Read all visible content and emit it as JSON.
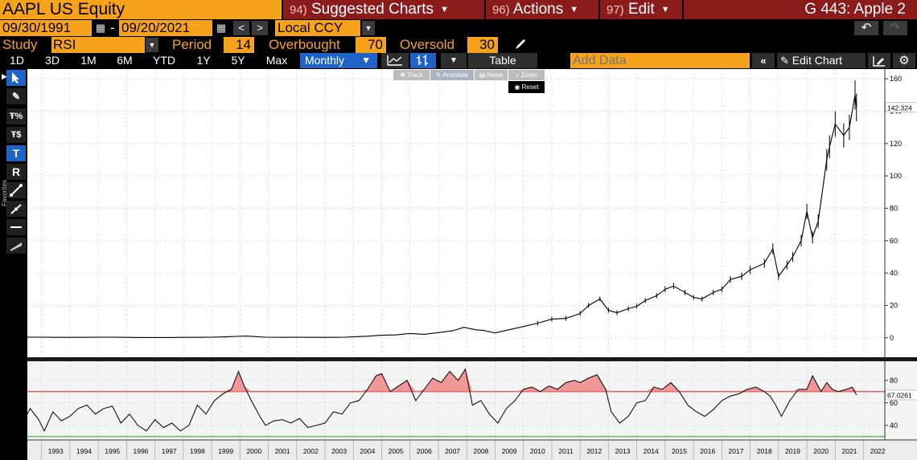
{
  "header": {
    "ticker": "AAPL US Equity",
    "menus": [
      {
        "num": "94)",
        "label": "Suggested Charts"
      },
      {
        "num": "96)",
        "label": "Actions"
      },
      {
        "num": "97)",
        "label": "Edit"
      }
    ],
    "page_id": "G 443: Apple 2"
  },
  "date_range": {
    "start": "09/30/1991",
    "separator": "-",
    "end": "09/20/2021",
    "prev_glyph": "<",
    "next_glyph": ">",
    "currency": "Local CCY"
  },
  "study": {
    "label": "Study",
    "value": "RSI",
    "period_label": "Period",
    "period": "14",
    "overbought_label": "Overbought",
    "overbought": "70",
    "oversold_label": "Oversold",
    "oversold": "30"
  },
  "toolbar": {
    "ranges": [
      "1D",
      "3D",
      "1M",
      "6M",
      "YTD",
      "1Y",
      "5Y",
      "Max"
    ],
    "frequency": "Monthly",
    "table_label": "Table",
    "add_data_placeholder": "Add Data",
    "edit_chart_label": "Edit Chart"
  },
  "left_tools": {
    "favorites_label": "Favorites",
    "items": [
      "cursor",
      "pencil",
      "percent",
      "dollar",
      "text",
      "R",
      "line",
      "trend",
      "hline",
      "fill"
    ]
  },
  "chart_popup": {
    "track": "Track",
    "annotate": "Annotate",
    "news": "News",
    "zoom": "Zoom",
    "reset": "Reset"
  },
  "chart_data": [
    {
      "type": "line",
      "panel": "price",
      "x": [
        1991.75,
        1992.0,
        1992.5,
        1993.0,
        1993.5,
        1994.0,
        1994.5,
        1995.0,
        1995.5,
        1996.0,
        1996.5,
        1997.0,
        1997.5,
        1998.0,
        1998.5,
        1999.0,
        1999.5,
        1999.9,
        2000.2,
        2000.5,
        2000.9,
        2001.5,
        2002.0,
        2002.5,
        2003.0,
        2003.3,
        2003.7,
        2004.0,
        2004.5,
        2005.0,
        2005.5,
        2006.0,
        2006.5,
        2007.0,
        2007.5,
        2007.9,
        2008.3,
        2008.6,
        2009.0,
        2009.5,
        2010.0,
        2010.5,
        2011.0,
        2011.5,
        2012.0,
        2012.3,
        2012.7,
        2013.0,
        2013.3,
        2013.7,
        2014.0,
        2014.3,
        2014.7,
        2015.0,
        2015.3,
        2015.7,
        2016.0,
        2016.3,
        2016.7,
        2017.0,
        2017.3,
        2017.7,
        2018.0,
        2018.5,
        2018.8,
        2019.0,
        2019.3,
        2019.5,
        2019.8,
        2020.0,
        2020.2,
        2020.4,
        2020.7,
        2020.8,
        2021.0,
        2021.3,
        2021.5,
        2021.7,
        2021.75
      ],
      "y": [
        0.4,
        0.5,
        0.4,
        0.4,
        0.3,
        0.3,
        0.3,
        0.4,
        0.4,
        0.3,
        0.2,
        0.2,
        0.2,
        0.3,
        0.3,
        0.4,
        0.6,
        0.9,
        1.1,
        0.8,
        0.4,
        0.3,
        0.4,
        0.3,
        0.3,
        0.3,
        0.4,
        0.6,
        1.0,
        1.6,
        1.8,
        2.7,
        2.2,
        3.2,
        4.3,
        6.5,
        5.0,
        4.5,
        3.0,
        5.0,
        7.0,
        9.0,
        11.5,
        12.0,
        15.0,
        20.0,
        24.0,
        17.0,
        15.5,
        18.0,
        19.5,
        23.0,
        26.0,
        30.0,
        32.0,
        28.0,
        25.0,
        24.0,
        28.0,
        30.0,
        36.0,
        38.0,
        42.0,
        46.0,
        55.0,
        38.0,
        45.0,
        50.0,
        60.0,
        78.0,
        62.0,
        72.0,
        110.0,
        118.0,
        132.0,
        125.0,
        130.0,
        150.0,
        142.324
      ],
      "ylim": [
        -12,
        166
      ],
      "yticks": [
        0,
        20,
        40,
        60,
        80,
        100,
        120,
        140,
        160
      ],
      "last_value_label": "142.324"
    },
    {
      "type": "line",
      "panel": "rsi",
      "x": [
        1991.75,
        1992.0,
        1992.3,
        1992.6,
        1992.9,
        1993.1,
        1993.4,
        1993.7,
        1994.0,
        1994.3,
        1994.6,
        1994.9,
        1995.2,
        1995.5,
        1995.8,
        1996.1,
        1996.4,
        1996.7,
        1997.0,
        1997.3,
        1997.6,
        1997.9,
        1998.2,
        1998.5,
        1998.8,
        1999.1,
        1999.4,
        1999.7,
        1999.95,
        2000.15,
        2000.4,
        2000.7,
        2000.9,
        2001.2,
        2001.5,
        2001.8,
        2002.1,
        2002.4,
        2002.7,
        2003.0,
        2003.3,
        2003.6,
        2003.9,
        2004.2,
        2004.5,
        2004.8,
        2005.0,
        2005.3,
        2005.6,
        2005.9,
        2006.2,
        2006.5,
        2006.8,
        2007.1,
        2007.4,
        2007.7,
        2007.95,
        2008.2,
        2008.5,
        2008.8,
        2009.1,
        2009.4,
        2009.7,
        2010.0,
        2010.3,
        2010.6,
        2010.9,
        2011.2,
        2011.5,
        2011.8,
        2012.0,
        2012.3,
        2012.6,
        2012.9,
        2013.1,
        2013.4,
        2013.7,
        2014.0,
        2014.3,
        2014.6,
        2014.9,
        2015.2,
        2015.5,
        2015.8,
        2016.1,
        2016.4,
        2016.7,
        2017.0,
        2017.3,
        2017.6,
        2017.9,
        2018.2,
        2018.5,
        2018.7,
        2018.9,
        2019.1,
        2019.4,
        2019.7,
        2020.0,
        2020.2,
        2020.5,
        2020.7,
        2020.9,
        2021.1,
        2021.4,
        2021.6,
        2021.75
      ],
      "y": [
        50,
        58,
        40,
        55,
        45,
        35,
        52,
        44,
        48,
        55,
        58,
        50,
        55,
        57,
        42,
        50,
        40,
        35,
        45,
        38,
        42,
        35,
        40,
        58,
        50,
        62,
        68,
        72,
        88,
        75,
        62,
        48,
        40,
        44,
        45,
        42,
        46,
        38,
        40,
        42,
        52,
        50,
        60,
        62,
        72,
        84,
        86,
        70,
        75,
        80,
        62,
        72,
        82,
        78,
        88,
        80,
        90,
        58,
        62,
        50,
        42,
        55,
        62,
        72,
        74,
        70,
        75,
        72,
        78,
        80,
        78,
        82,
        85,
        72,
        52,
        42,
        48,
        60,
        62,
        74,
        72,
        78,
        70,
        58,
        52,
        48,
        54,
        62,
        66,
        68,
        72,
        74,
        70,
        66,
        58,
        48,
        62,
        72,
        72,
        84,
        70,
        78,
        72,
        70,
        72,
        74,
        67.0261
      ],
      "ylim": [
        27,
        97
      ],
      "yticks": [
        40,
        60,
        80
      ],
      "overbought": 70,
      "oversold": 30,
      "last_value_label": "67.0261"
    }
  ],
  "x_axis": {
    "range": [
      1992.5,
      2022.75
    ],
    "labels": [
      "1993",
      "1994",
      "1995",
      "1996",
      "1997",
      "1998",
      "1999",
      "2000",
      "2001",
      "2002",
      "2003",
      "2004",
      "2005",
      "2006",
      "2007",
      "2008",
      "2009",
      "2010",
      "2011",
      "2012",
      "2013",
      "2014",
      "2015",
      "2016",
      "2017",
      "2018",
      "2019",
      "2020",
      "2021",
      "2022"
    ]
  },
  "colors": {
    "accent_orange": "#f7a21b",
    "menu_red": "#8b1a1a",
    "selected_blue": "#1e64c8",
    "overbought_line": "#e03030",
    "oversold_line": "#30b030",
    "overbought_fill": "#f08080"
  }
}
